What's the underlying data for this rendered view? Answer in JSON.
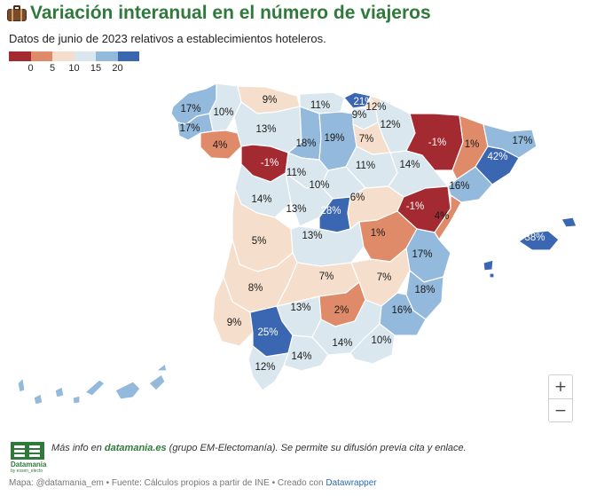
{
  "title": "Variación interanual en el número de viajeros",
  "subtitle": "Datos de junio de 2023 relativos a establecimientos hoteleros.",
  "legend": {
    "colors": [
      "#a42a31",
      "#df8b6a",
      "#f5dfcc",
      "#dbe7ee",
      "#93b9dc",
      "#3a66b2"
    ],
    "ticks": [
      "0",
      "5",
      "10",
      "15",
      "20"
    ]
  },
  "chart_data": {
    "type": "choropleth",
    "region": "Spain provinces",
    "metric": "year-on-year change in hotel travellers (%)",
    "color_breaks": [
      0,
      5,
      10,
      15,
      20
    ],
    "provinces": [
      {
        "name": "A Coruña",
        "value": 17
      },
      {
        "name": "Lugo",
        "value": 10
      },
      {
        "name": "Pontevedra",
        "value": 17
      },
      {
        "name": "Ourense",
        "value": 4
      },
      {
        "name": "Asturias",
        "value": 9
      },
      {
        "name": "Cantabria",
        "value": 11
      },
      {
        "name": "Bizkaia",
        "value": 21
      },
      {
        "name": "Gipuzkoa",
        "value": 9
      },
      {
        "name": "Álava",
        "value": 12
      },
      {
        "name": "Navarra",
        "value": 12
      },
      {
        "name": "La Rioja",
        "value": 7
      },
      {
        "name": "León",
        "value": 13
      },
      {
        "name": "Palencia",
        "value": 18
      },
      {
        "name": "Burgos",
        "value": 19
      },
      {
        "name": "Zamora",
        "value": -1
      },
      {
        "name": "Valladolid",
        "value": 11
      },
      {
        "name": "Soria",
        "value": 11
      },
      {
        "name": "Salamanca",
        "value": 14
      },
      {
        "name": "Segovia",
        "value": 10
      },
      {
        "name": "Ávila",
        "value": 13
      },
      {
        "name": "Madrid",
        "value": 28
      },
      {
        "name": "Guadalajara",
        "value": 6
      },
      {
        "name": "Huesca",
        "value": -1
      },
      {
        "name": "Zaragoza",
        "value": 14
      },
      {
        "name": "Teruel",
        "value": -1
      },
      {
        "name": "Lleida",
        "value": 1
      },
      {
        "name": "Girona",
        "value": 17
      },
      {
        "name": "Barcelona",
        "value": 42
      },
      {
        "name": "Tarragona",
        "value": 16
      },
      {
        "name": "Castellón",
        "value": 4
      },
      {
        "name": "Cáceres",
        "value": 5
      },
      {
        "name": "Toledo",
        "value": 13
      },
      {
        "name": "Cuenca",
        "value": 1
      },
      {
        "name": "Valencia",
        "value": 17
      },
      {
        "name": "Badajoz",
        "value": 8
      },
      {
        "name": "Ciudad Real",
        "value": 7
      },
      {
        "name": "Albacete",
        "value": 7
      },
      {
        "name": "Alicante",
        "value": 18
      },
      {
        "name": "Murcia",
        "value": 16
      },
      {
        "name": "Córdoba",
        "value": 13
      },
      {
        "name": "Jaén",
        "value": 2
      },
      {
        "name": "Huelva",
        "value": 9
      },
      {
        "name": "Sevilla",
        "value": 25
      },
      {
        "name": "Granada",
        "value": 14
      },
      {
        "name": "Almería",
        "value": 10
      },
      {
        "name": "Málaga",
        "value": 14
      },
      {
        "name": "Cádiz",
        "value": 12
      },
      {
        "name": "Illes Balears",
        "value": 38
      },
      {
        "name": "Las Palmas",
        "value": null
      },
      {
        "name": "Santa Cruz de Tenerife",
        "value": null
      }
    ]
  },
  "zoom": {
    "in_label": "+",
    "out_label": "−"
  },
  "note": {
    "prefix": "Más info en ",
    "link": "datamania.es",
    "suffix": " (grupo EM-Electomanía). Se permite su difusión previa cita y enlace."
  },
  "logo": {
    "name": "Datamania",
    "by": "by essen_electo"
  },
  "footer": {
    "text": "Mapa: @datamania_em • Fuente: Cálculos propios a partir de INE • Creado con ",
    "link": "Datawrapper"
  }
}
